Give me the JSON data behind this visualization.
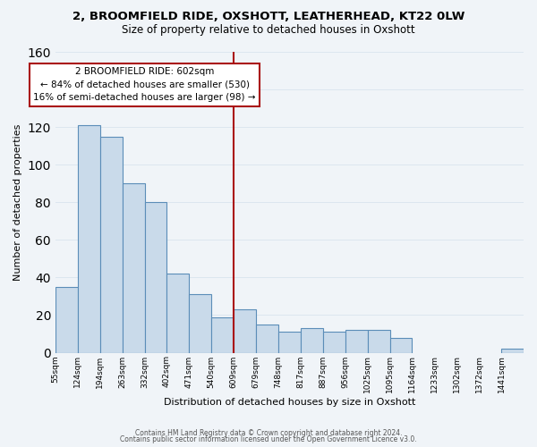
{
  "title1": "2, BROOMFIELD RIDE, OXSHOTT, LEATHERHEAD, KT22 0LW",
  "title2": "Size of property relative to detached houses in Oxshott",
  "xlabel": "Distribution of detached houses by size in Oxshott",
  "ylabel": "Number of detached properties",
  "bar_labels": [
    "55sqm",
    "124sqm",
    "194sqm",
    "263sqm",
    "332sqm",
    "402sqm",
    "471sqm",
    "540sqm",
    "609sqm",
    "679sqm",
    "748sqm",
    "817sqm",
    "887sqm",
    "956sqm",
    "1025sqm",
    "1095sqm",
    "1164sqm",
    "1233sqm",
    "1302sqm",
    "1372sqm",
    "1441sqm"
  ],
  "bar_heights": [
    35,
    121,
    115,
    90,
    80,
    42,
    31,
    19,
    23,
    15,
    11,
    13,
    11,
    12,
    12,
    8,
    0,
    0,
    0,
    0,
    2
  ],
  "bar_color": "#c9daea",
  "bar_edge_color": "#5b8db8",
  "vline_color": "#aa1111",
  "annotation_title": "2 BROOMFIELD RIDE: 602sqm",
  "annotation_line1": "← 84% of detached houses are smaller (530)",
  "annotation_line2": "16% of semi-detached houses are larger (98) →",
  "annotation_box_color": "#ffffff",
  "annotation_box_edge_color": "#aa1111",
  "ylim": [
    0,
    160
  ],
  "yticks": [
    0,
    20,
    40,
    60,
    80,
    100,
    120,
    140,
    160
  ],
  "footer1": "Contains HM Land Registry data © Crown copyright and database right 2024.",
  "footer2": "Contains public sector information licensed under the Open Government Licence v3.0.",
  "background_color": "#f0f4f8",
  "grid_color": "#dce6ef",
  "vline_bar_index": 8
}
